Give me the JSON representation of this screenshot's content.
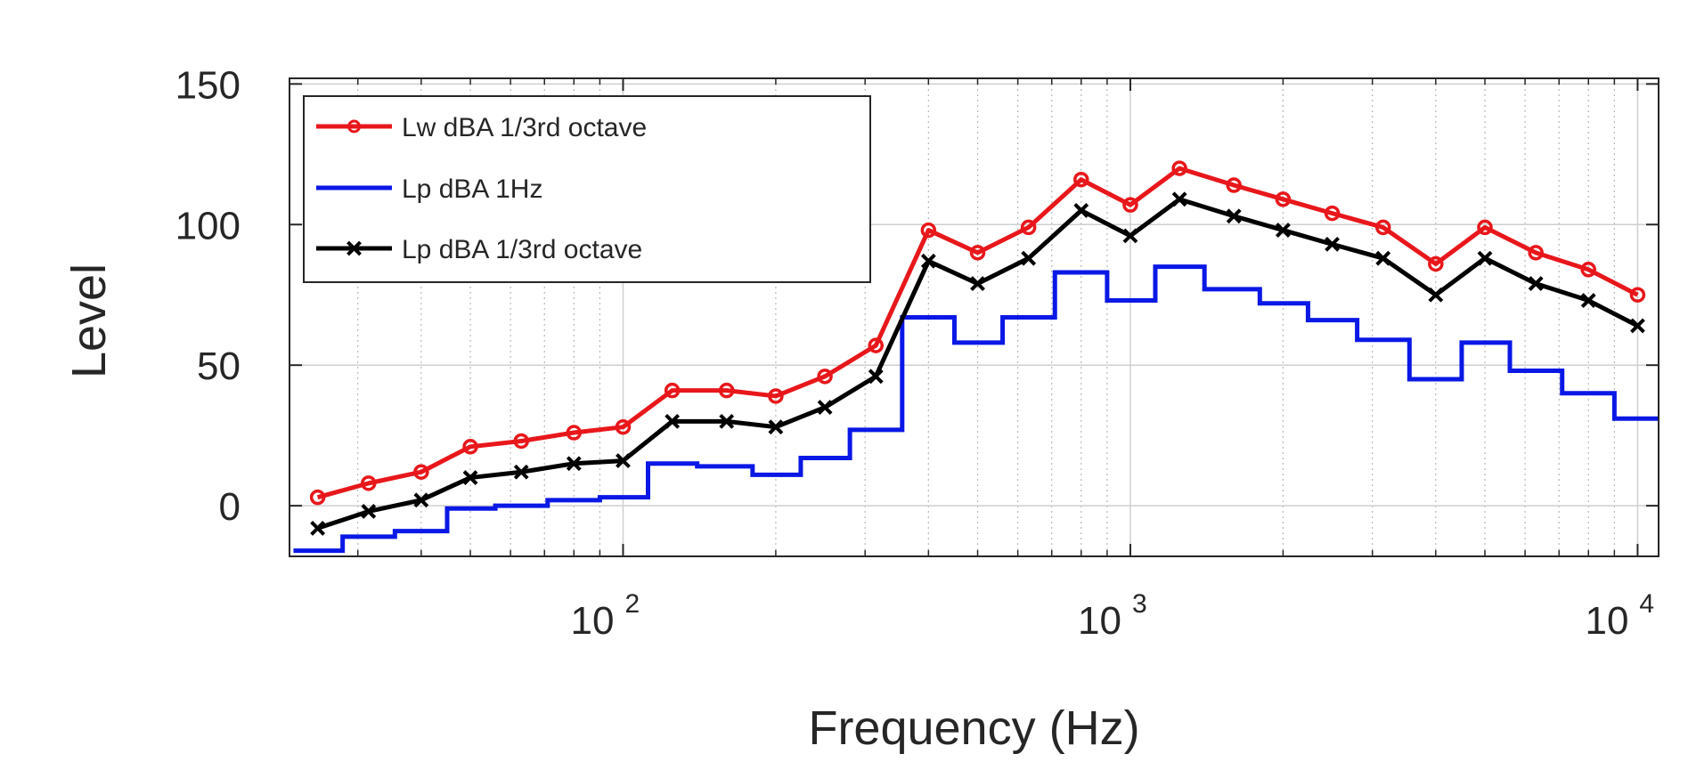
{
  "chart_data": {
    "type": "line",
    "xscale": "log",
    "xlim": [
      22,
      11000
    ],
    "ylim": [
      -18,
      152
    ],
    "xlabel": "Frequency (Hz)",
    "ylabel": "Level",
    "grid": true,
    "legend_position": "top-left",
    "y_ticks": [
      {
        "value": 0,
        "label": "0"
      },
      {
        "value": 50,
        "label": "50"
      },
      {
        "value": 100,
        "label": "100"
      },
      {
        "value": 150,
        "label": "150"
      }
    ],
    "x_ticks": [
      {
        "value": 100,
        "base": "10",
        "exp": "2"
      },
      {
        "value": 1000,
        "base": "10",
        "exp": "3"
      },
      {
        "value": 10000,
        "base": "10",
        "exp": "4"
      }
    ],
    "series": [
      {
        "name": "Lw dBA 1/3rd octave",
        "color": "#e8171b",
        "style": "line-circle",
        "x": [
          25,
          31.5,
          40,
          50,
          63,
          80,
          100,
          125,
          160,
          200,
          250,
          315,
          400,
          500,
          630,
          800,
          1000,
          1250,
          1600,
          2000,
          2500,
          3150,
          4000,
          5000,
          6300,
          8000,
          10000
        ],
        "values": [
          3,
          8,
          12,
          21,
          23,
          26,
          28,
          41,
          41,
          39,
          46,
          57,
          98,
          90,
          99,
          116,
          107,
          120,
          114,
          109,
          104,
          99,
          86,
          99,
          90,
          84,
          75
        ]
      },
      {
        "name": "Lp dBA 1Hz",
        "color": "#0a18e6",
        "style": "step",
        "x": [
          22.4,
          28,
          35.5,
          45,
          56,
          71,
          90,
          112,
          140,
          180,
          224,
          280,
          355,
          450,
          560,
          710,
          900,
          1120,
          1400,
          1800,
          2240,
          2800,
          3550,
          4500,
          5600,
          7100,
          9000,
          11000
        ],
        "values": [
          -16,
          -11,
          -9,
          -1,
          0,
          2,
          3,
          15,
          14,
          11,
          17,
          27,
          67,
          58,
          67,
          83,
          73,
          85,
          77,
          72,
          66,
          59,
          45,
          58,
          48,
          40,
          31,
          31
        ]
      },
      {
        "name": "Lp dBA 1/3rd octave",
        "color": "#000000",
        "style": "line-x",
        "x": [
          25,
          31.5,
          40,
          50,
          63,
          80,
          100,
          125,
          160,
          200,
          250,
          315,
          400,
          500,
          630,
          800,
          1000,
          1250,
          1600,
          2000,
          2500,
          3150,
          4000,
          5000,
          6300,
          8000,
          10000
        ],
        "values": [
          -8,
          -2,
          2,
          10,
          12,
          15,
          16,
          30,
          30,
          28,
          35,
          46,
          87,
          79,
          88,
          105,
          96,
          109,
          103,
          98,
          93,
          88,
          75,
          88,
          79,
          73,
          64
        ]
      }
    ]
  }
}
